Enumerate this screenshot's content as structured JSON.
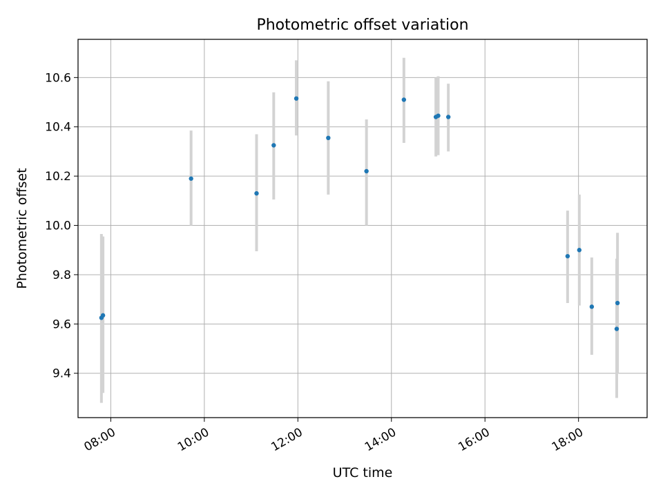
{
  "chart_data": {
    "type": "scatter",
    "title": "Photometric offset variation",
    "xlabel": "UTC time",
    "ylabel": "Photometric offset",
    "x_axis_type": "time",
    "xlim": [
      "07:18",
      "19:28"
    ],
    "ylim": [
      9.22,
      10.755
    ],
    "xticks": [
      "08:00",
      "10:00",
      "12:00",
      "14:00",
      "16:00",
      "18:00"
    ],
    "yticks": [
      "9.4",
      "9.6",
      "9.8",
      "10.0",
      "10.2",
      "10.4",
      "10.6"
    ],
    "grid": true,
    "errorbar_color": "#d3d3d3",
    "marker_color": "#1f77b4",
    "series": [
      {
        "points": [
          {
            "x": "07:48",
            "y": 9.625,
            "ylow": 9.28,
            "yhigh": 9.965
          },
          {
            "x": "07:50",
            "y": 9.635,
            "ylow": 9.32,
            "yhigh": 9.955
          },
          {
            "x": "09:43",
            "y": 10.19,
            "ylow": 10.0,
            "yhigh": 10.385
          },
          {
            "x": "11:07",
            "y": 10.13,
            "ylow": 9.895,
            "yhigh": 10.37
          },
          {
            "x": "11:29",
            "y": 10.325,
            "ylow": 10.105,
            "yhigh": 10.54
          },
          {
            "x": "11:58",
            "y": 10.515,
            "ylow": 10.365,
            "yhigh": 10.67
          },
          {
            "x": "12:39",
            "y": 10.355,
            "ylow": 10.125,
            "yhigh": 10.585
          },
          {
            "x": "13:28",
            "y": 10.22,
            "ylow": 10.0,
            "yhigh": 10.43
          },
          {
            "x": "14:16",
            "y": 10.51,
            "ylow": 10.335,
            "yhigh": 10.68
          },
          {
            "x": "14:57",
            "y": 10.44,
            "ylow": 10.28,
            "yhigh": 10.6
          },
          {
            "x": "15:00",
            "y": 10.445,
            "ylow": 10.285,
            "yhigh": 10.605
          },
          {
            "x": "15:13",
            "y": 10.44,
            "ylow": 10.3,
            "yhigh": 10.575
          },
          {
            "x": "17:46",
            "y": 9.875,
            "ylow": 9.685,
            "yhigh": 10.06
          },
          {
            "x": "18:01",
            "y": 9.9,
            "ylow": 9.675,
            "yhigh": 10.125
          },
          {
            "x": "18:17",
            "y": 9.67,
            "ylow": 9.475,
            "yhigh": 9.87
          },
          {
            "x": "18:49",
            "y": 9.58,
            "ylow": 9.3,
            "yhigh": 9.865
          },
          {
            "x": "18:50",
            "y": 9.685,
            "ylow": 9.4,
            "yhigh": 9.97
          }
        ]
      }
    ]
  }
}
